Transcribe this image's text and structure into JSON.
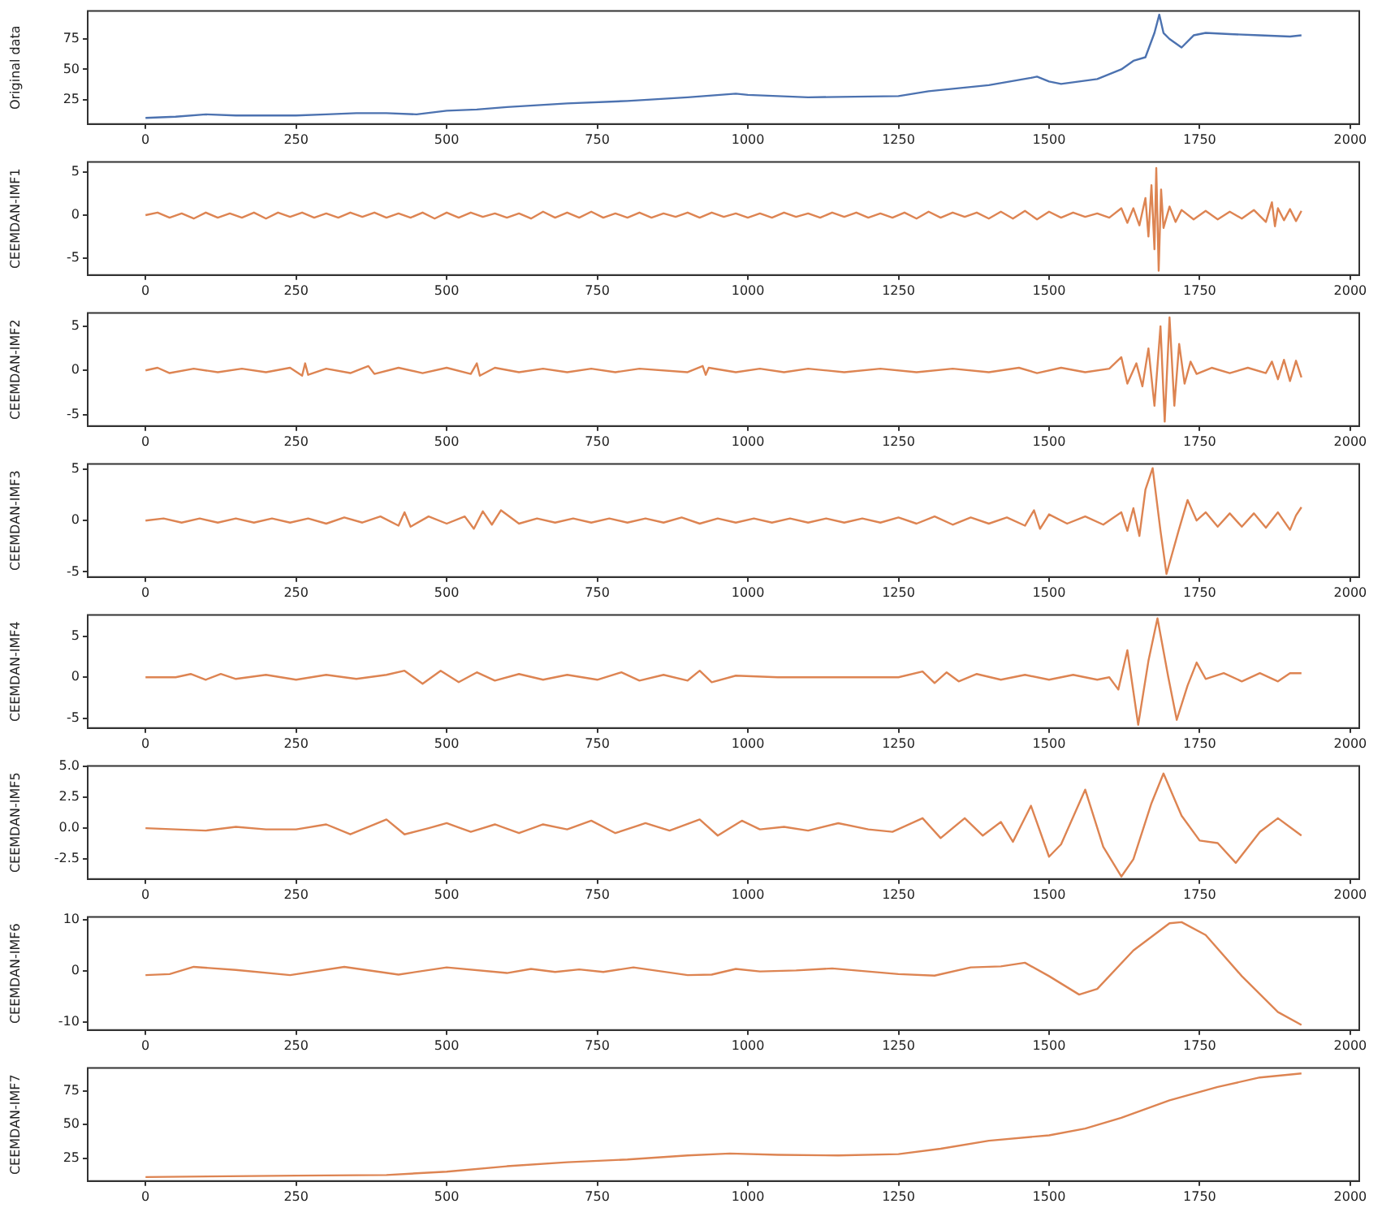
{
  "chart_data": [
    {
      "type": "line",
      "ylabel": "Original data",
      "color": "#4c72b0",
      "xlim": [
        -96,
        2015
      ],
      "xticks": [
        0,
        250,
        500,
        750,
        1000,
        1250,
        1500,
        1750,
        2000
      ],
      "ylim": [
        5,
        98
      ],
      "yticks": [
        25,
        50,
        75
      ],
      "x": [
        0,
        50,
        100,
        150,
        250,
        300,
        350,
        400,
        450,
        500,
        550,
        600,
        700,
        800,
        900,
        980,
        1000,
        1100,
        1250,
        1300,
        1400,
        1470,
        1480,
        1500,
        1520,
        1580,
        1620,
        1640,
        1660,
        1675,
        1683,
        1690,
        1700,
        1720,
        1740,
        1760,
        1800,
        1850,
        1900,
        1919
      ],
      "values": [
        10,
        11,
        13,
        12,
        12,
        13,
        14,
        14,
        13,
        16,
        17,
        19,
        22,
        24,
        27,
        30,
        29,
        27,
        28,
        32,
        37,
        43,
        44,
        40,
        38,
        42,
        50,
        57,
        60,
        80,
        95,
        80,
        75,
        68,
        78,
        80,
        79,
        78,
        77,
        78
      ]
    },
    {
      "type": "line",
      "ylabel": "CEEMDAN-IMF1",
      "color": "#dd8452",
      "xlim": [
        -96,
        2015
      ],
      "xticks": [
        0,
        250,
        500,
        750,
        1000,
        1250,
        1500,
        1750,
        2000
      ],
      "ylim": [
        -7,
        6.2
      ],
      "yticks": [
        -5,
        0,
        5
      ],
      "x": [
        0,
        20,
        40,
        60,
        80,
        100,
        120,
        140,
        160,
        180,
        200,
        220,
        240,
        260,
        280,
        300,
        320,
        340,
        360,
        380,
        400,
        420,
        440,
        460,
        480,
        500,
        520,
        540,
        560,
        580,
        600,
        620,
        640,
        660,
        680,
        700,
        720,
        740,
        760,
        780,
        800,
        820,
        840,
        860,
        880,
        900,
        920,
        940,
        960,
        980,
        1000,
        1020,
        1040,
        1060,
        1080,
        1100,
        1120,
        1140,
        1160,
        1180,
        1200,
        1220,
        1240,
        1260,
        1280,
        1300,
        1320,
        1340,
        1360,
        1380,
        1400,
        1420,
        1440,
        1460,
        1480,
        1500,
        1520,
        1540,
        1560,
        1580,
        1600,
        1620,
        1630,
        1640,
        1650,
        1660,
        1665,
        1670,
        1675,
        1678,
        1682,
        1686,
        1690,
        1700,
        1710,
        1720,
        1740,
        1760,
        1780,
        1800,
        1820,
        1840,
        1860,
        1870,
        1875,
        1880,
        1890,
        1900,
        1910,
        1919
      ],
      "values": [
        0,
        0.3,
        -0.3,
        0.2,
        -0.4,
        0.3,
        -0.3,
        0.2,
        -0.3,
        0.3,
        -0.4,
        0.3,
        -0.2,
        0.3,
        -0.3,
        0.2,
        -0.3,
        0.3,
        -0.2,
        0.3,
        -0.3,
        0.2,
        -0.3,
        0.3,
        -0.4,
        0.3,
        -0.3,
        0.3,
        -0.2,
        0.2,
        -0.3,
        0.2,
        -0.4,
        0.4,
        -0.3,
        0.3,
        -0.3,
        0.4,
        -0.3,
        0.2,
        -0.3,
        0.3,
        -0.3,
        0.2,
        -0.2,
        0.3,
        -0.3,
        0.3,
        -0.2,
        0.2,
        -0.3,
        0.2,
        -0.3,
        0.3,
        -0.2,
        0.2,
        -0.3,
        0.3,
        -0.2,
        0.3,
        -0.3,
        0.2,
        -0.3,
        0.3,
        -0.4,
        0.4,
        -0.3,
        0.3,
        -0.2,
        0.3,
        -0.4,
        0.4,
        -0.4,
        0.5,
        -0.5,
        0.4,
        -0.3,
        0.3,
        -0.2,
        0.2,
        -0.3,
        0.8,
        -0.9,
        0.8,
        -1.2,
        2,
        -2.5,
        3.5,
        -4,
        5.5,
        -6.5,
        3,
        -1.5,
        1,
        -0.8,
        0.6,
        -0.5,
        0.5,
        -0.5,
        0.4,
        -0.4,
        0.6,
        -0.8,
        1.5,
        -1.3,
        0.8,
        -0.6,
        0.7,
        -0.7,
        0.5
      ]
    },
    {
      "type": "line",
      "ylabel": "CEEMDAN-IMF2",
      "color": "#dd8452",
      "xlim": [
        -96,
        2015
      ],
      "xticks": [
        0,
        250,
        500,
        750,
        1000,
        1250,
        1500,
        1750,
        2000
      ],
      "ylim": [
        -6.3,
        6.5
      ],
      "yticks": [
        -5,
        0,
        5
      ],
      "x": [
        0,
        20,
        40,
        80,
        120,
        160,
        200,
        240,
        260,
        265,
        270,
        300,
        340,
        370,
        380,
        420,
        460,
        500,
        540,
        550,
        555,
        580,
        620,
        660,
        700,
        740,
        780,
        820,
        900,
        925,
        930,
        935,
        980,
        1020,
        1060,
        1100,
        1160,
        1220,
        1280,
        1340,
        1400,
        1450,
        1480,
        1520,
        1560,
        1600,
        1620,
        1630,
        1645,
        1655,
        1665,
        1675,
        1685,
        1692,
        1700,
        1708,
        1716,
        1725,
        1735,
        1745,
        1770,
        1800,
        1830,
        1860,
        1870,
        1880,
        1890,
        1900,
        1910,
        1919
      ],
      "values": [
        0,
        0.3,
        -0.3,
        0.2,
        -0.2,
        0.2,
        -0.2,
        0.3,
        -0.6,
        0.8,
        -0.5,
        0.2,
        -0.3,
        0.5,
        -0.4,
        0.3,
        -0.3,
        0.3,
        -0.4,
        0.8,
        -0.6,
        0.3,
        -0.2,
        0.2,
        -0.2,
        0.2,
        -0.2,
        0.2,
        -0.2,
        0.5,
        -0.5,
        0.3,
        -0.2,
        0.2,
        -0.2,
        0.2,
        -0.2,
        0.2,
        -0.2,
        0.2,
        -0.2,
        0.3,
        -0.3,
        0.3,
        -0.2,
        0.2,
        1.5,
        -1.5,
        0.8,
        -1.8,
        2.5,
        -4,
        5,
        -5.8,
        6,
        -4,
        3,
        -1.5,
        1,
        -0.4,
        0.3,
        -0.3,
        0.3,
        -0.3,
        1,
        -1,
        1.2,
        -1.2,
        1.1,
        -0.8
      ]
    },
    {
      "type": "line",
      "ylabel": "CEEMDAN-IMF3",
      "color": "#dd8452",
      "xlim": [
        -96,
        2015
      ],
      "xticks": [
        0,
        250,
        500,
        750,
        1000,
        1250,
        1500,
        1750,
        2000
      ],
      "ylim": [
        -5.5,
        5.5
      ],
      "yticks": [
        -5,
        0,
        5
      ],
      "x": [
        0,
        30,
        60,
        90,
        120,
        150,
        180,
        210,
        240,
        270,
        300,
        330,
        360,
        390,
        420,
        430,
        440,
        470,
        500,
        530,
        545,
        560,
        575,
        590,
        620,
        650,
        680,
        710,
        740,
        770,
        800,
        830,
        860,
        890,
        920,
        950,
        980,
        1010,
        1040,
        1070,
        1100,
        1130,
        1160,
        1190,
        1220,
        1250,
        1280,
        1310,
        1340,
        1370,
        1400,
        1430,
        1460,
        1475,
        1485,
        1500,
        1530,
        1560,
        1590,
        1620,
        1630,
        1640,
        1650,
        1660,
        1672,
        1685,
        1695,
        1715,
        1730,
        1745,
        1760,
        1780,
        1800,
        1820,
        1840,
        1860,
        1880,
        1900,
        1910,
        1919
      ],
      "values": [
        0,
        0.2,
        -0.2,
        0.2,
        -0.2,
        0.2,
        -0.2,
        0.2,
        -0.2,
        0.2,
        -0.3,
        0.3,
        -0.2,
        0.4,
        -0.5,
        0.8,
        -0.6,
        0.4,
        -0.3,
        0.4,
        -0.8,
        0.9,
        -0.4,
        1,
        -0.3,
        0.2,
        -0.2,
        0.2,
        -0.2,
        0.2,
        -0.2,
        0.2,
        -0.2,
        0.3,
        -0.3,
        0.2,
        -0.2,
        0.2,
        -0.2,
        0.2,
        -0.2,
        0.2,
        -0.2,
        0.2,
        -0.2,
        0.3,
        -0.3,
        0.4,
        -0.4,
        0.3,
        -0.3,
        0.3,
        -0.5,
        1,
        -0.8,
        0.6,
        -0.3,
        0.4,
        -0.4,
        0.8,
        -1,
        1.2,
        -1.5,
        3,
        5.1,
        -1,
        -5.2,
        -1,
        2,
        0,
        0.8,
        -0.6,
        0.7,
        -0.6,
        0.7,
        -0.7,
        0.8,
        -0.9,
        0.5,
        1.3
      ]
    },
    {
      "type": "line",
      "ylabel": "CEEMDAN-IMF4",
      "color": "#dd8452",
      "xlim": [
        -96,
        2015
      ],
      "xticks": [
        0,
        250,
        500,
        750,
        1000,
        1250,
        1500,
        1750,
        2000
      ],
      "ylim": [
        -6.2,
        7.6
      ],
      "yticks": [
        -5,
        0,
        5
      ],
      "x": [
        0,
        50,
        75,
        100,
        125,
        150,
        200,
        250,
        300,
        350,
        400,
        430,
        460,
        490,
        520,
        550,
        580,
        620,
        660,
        700,
        750,
        790,
        820,
        860,
        900,
        920,
        940,
        980,
        1050,
        1150,
        1250,
        1290,
        1310,
        1330,
        1350,
        1380,
        1420,
        1460,
        1500,
        1540,
        1580,
        1600,
        1615,
        1630,
        1648,
        1665,
        1680,
        1698,
        1712,
        1730,
        1745,
        1760,
        1790,
        1820,
        1850,
        1880,
        1900,
        1919
      ],
      "values": [
        0,
        0,
        0.4,
        -0.3,
        0.4,
        -0.2,
        0.3,
        -0.3,
        0.3,
        -0.2,
        0.3,
        0.8,
        -0.8,
        0.8,
        -0.6,
        0.6,
        -0.4,
        0.4,
        -0.3,
        0.3,
        -0.3,
        0.6,
        -0.4,
        0.3,
        -0.4,
        0.8,
        -0.6,
        0.2,
        0,
        0,
        0,
        0.7,
        -0.7,
        0.6,
        -0.5,
        0.4,
        -0.3,
        0.3,
        -0.3,
        0.3,
        -0.3,
        0,
        -1.5,
        3.3,
        -5.8,
        2,
        7.2,
        0,
        -5.2,
        -1,
        1.8,
        -0.2,
        0.5,
        -0.5,
        0.5,
        -0.5,
        0.5,
        0.5
      ]
    },
    {
      "type": "line",
      "ylabel": "CEEMDAN-IMF5",
      "color": "#dd8452",
      "xlim": [
        -96,
        2015
      ],
      "xticks": [
        0,
        250,
        500,
        750,
        1000,
        1250,
        1500,
        1750,
        2000
      ],
      "ylim": [
        -4.1,
        5.0
      ],
      "yticks": [
        {
          "value": -2.5,
          "label": "-2.5"
        },
        {
          "value": 0,
          "label": "0.0"
        },
        {
          "value": 2.5,
          "label": "2.5"
        },
        {
          "value": 5,
          "label": "5.0"
        }
      ],
      "x": [
        0,
        50,
        100,
        150,
        200,
        250,
        300,
        340,
        400,
        430,
        470,
        500,
        540,
        580,
        620,
        660,
        700,
        740,
        780,
        830,
        870,
        920,
        950,
        990,
        1020,
        1060,
        1100,
        1150,
        1200,
        1240,
        1290,
        1320,
        1360,
        1390,
        1420,
        1440,
        1470,
        1500,
        1520,
        1560,
        1590,
        1620,
        1640,
        1670,
        1690,
        1720,
        1750,
        1780,
        1810,
        1850,
        1880,
        1919
      ],
      "values": [
        0,
        -0.1,
        -0.2,
        0.1,
        -0.1,
        -0.1,
        0.3,
        -0.5,
        0.7,
        -0.5,
        0,
        0.4,
        -0.3,
        0.3,
        -0.4,
        0.3,
        -0.1,
        0.6,
        -0.4,
        0.4,
        -0.2,
        0.7,
        -0.6,
        0.6,
        -0.1,
        0.1,
        -0.2,
        0.4,
        -0.1,
        -0.3,
        0.8,
        -0.8,
        0.8,
        -0.6,
        0.5,
        -1.1,
        1.8,
        -2.3,
        -1.3,
        3.1,
        -1.5,
        -3.9,
        -2.5,
        2,
        4.4,
        1,
        -1,
        -1.2,
        -2.8,
        -0.3,
        0.8,
        -0.6
      ]
    },
    {
      "type": "line",
      "ylabel": "CEEMDAN-IMF6",
      "color": "#dd8452",
      "xlim": [
        -96,
        2015
      ],
      "xticks": [
        0,
        250,
        500,
        750,
        1000,
        1250,
        1500,
        1750,
        2000
      ],
      "ylim": [
        -11.5,
        10.5
      ],
      "yticks": [
        -10,
        0,
        10
      ],
      "x": [
        0,
        40,
        80,
        150,
        240,
        330,
        420,
        500,
        600,
        640,
        680,
        720,
        760,
        810,
        900,
        940,
        980,
        1020,
        1080,
        1140,
        1250,
        1310,
        1370,
        1420,
        1460,
        1500,
        1550,
        1580,
        1640,
        1700,
        1720,
        1760,
        1820,
        1880,
        1919
      ],
      "values": [
        -0.8,
        -0.6,
        0.8,
        0.2,
        -0.8,
        0.8,
        -0.7,
        0.7,
        -0.4,
        0.4,
        -0.2,
        0.3,
        -0.2,
        0.7,
        -0.8,
        -0.7,
        0.4,
        -0.1,
        0.1,
        0.5,
        -0.6,
        -0.9,
        0.7,
        0.9,
        1.6,
        -1,
        -4.6,
        -3.5,
        4,
        9.3,
        9.5,
        7,
        -1,
        -8,
        -10.5
      ]
    },
    {
      "type": "line",
      "ylabel": "CEEMDAN-IMF7",
      "color": "#dd8452",
      "xlim": [
        -96,
        2015
      ],
      "xticks": [
        0,
        250,
        500,
        750,
        1000,
        1250,
        1500,
        1750,
        2000
      ],
      "ylim": [
        8,
        92
      ],
      "yticks": [
        25,
        50,
        75
      ],
      "x": [
        0,
        250,
        400,
        500,
        600,
        700,
        800,
        900,
        970,
        1050,
        1150,
        1250,
        1320,
        1400,
        1500,
        1560,
        1620,
        1700,
        1780,
        1850,
        1919
      ],
      "values": [
        11,
        12,
        12.5,
        15,
        19,
        22,
        24,
        27,
        28.5,
        27.5,
        27,
        28,
        32,
        38,
        42,
        47,
        55,
        68,
        78,
        85,
        88
      ]
    }
  ]
}
